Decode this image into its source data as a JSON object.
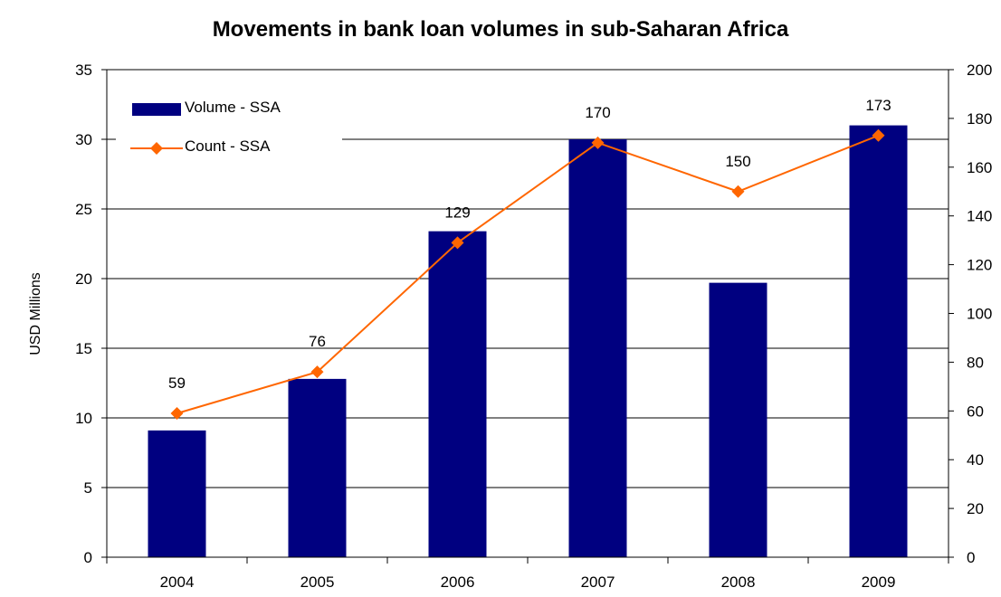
{
  "chart_data": {
    "type": "bar",
    "title": "Movements in bank loan volumes in sub-Saharan Africa",
    "xlabel": "",
    "ylabel": "USD Millions",
    "y2label": "",
    "categories": [
      "2004",
      "2005",
      "2006",
      "2007",
      "2008",
      "2009"
    ],
    "ylim": [
      0,
      35
    ],
    "yticks": [
      0,
      5,
      10,
      15,
      20,
      25,
      30,
      35
    ],
    "y2lim": [
      0,
      200
    ],
    "y2ticks": [
      0,
      20,
      40,
      60,
      80,
      100,
      120,
      140,
      160,
      180,
      200
    ],
    "grid": true,
    "legend_position": "top-left",
    "series": [
      {
        "name": "Volume - SSA",
        "type": "bar",
        "axis": "left",
        "color": "#000080",
        "values": [
          9.1,
          12.8,
          23.4,
          30.0,
          19.7,
          31.0
        ]
      },
      {
        "name": "Count - SSA",
        "type": "line",
        "axis": "right",
        "color": "#ff6600",
        "marker": "diamond",
        "values": [
          59,
          76,
          129,
          170,
          150,
          173
        ],
        "data_labels": [
          "59",
          "76",
          "129",
          "170",
          "150",
          "173"
        ]
      }
    ]
  }
}
